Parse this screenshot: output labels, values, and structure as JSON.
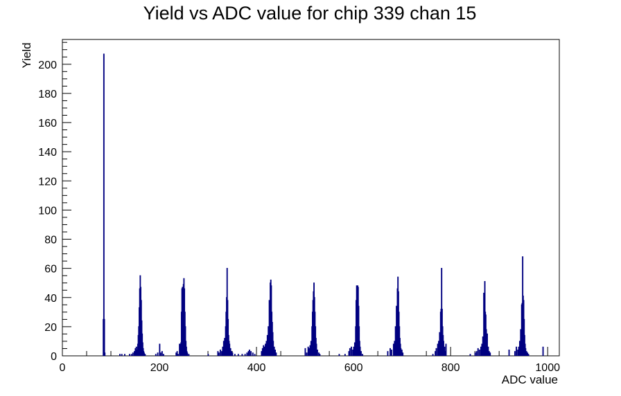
{
  "chart_data": {
    "type": "histogram",
    "title": "Yield vs ADC value for chip 339 chan 15",
    "xlabel": "ADC value",
    "ylabel": "Yield",
    "xlim": [
      0,
      1024
    ],
    "ylim": [
      0,
      217
    ],
    "x_ticks": [
      0,
      200,
      400,
      600,
      800,
      1000
    ],
    "y_ticks": [
      0,
      20,
      40,
      60,
      80,
      100,
      120,
      140,
      160,
      180,
      200
    ],
    "grid": false,
    "legend": "none",
    "color": "#000080",
    "series": [
      {
        "bins": [
          [
            84,
            25
          ],
          [
            85,
            207
          ],
          [
            86,
            25
          ],
          [
            87,
            2
          ],
          [
            118,
            1
          ],
          [
            122,
            1
          ],
          [
            128,
            1
          ],
          [
            138,
            1
          ],
          [
            142,
            1
          ],
          [
            145,
            2
          ],
          [
            148,
            3
          ],
          [
            150,
            5
          ],
          [
            152,
            6
          ],
          [
            154,
            4
          ],
          [
            155,
            8
          ],
          [
            156,
            14
          ],
          [
            157,
            20
          ],
          [
            158,
            33
          ],
          [
            159,
            46
          ],
          [
            160,
            55
          ],
          [
            161,
            47
          ],
          [
            162,
            38
          ],
          [
            163,
            24
          ],
          [
            164,
            15
          ],
          [
            165,
            9
          ],
          [
            166,
            5
          ],
          [
            167,
            3
          ],
          [
            168,
            2
          ],
          [
            170,
            1
          ],
          [
            192,
            1
          ],
          [
            196,
            2
          ],
          [
            200,
            8
          ],
          [
            202,
            2
          ],
          [
            205,
            3
          ],
          [
            208,
            1
          ],
          [
            234,
            2
          ],
          [
            236,
            3
          ],
          [
            238,
            1
          ],
          [
            241,
            8
          ],
          [
            243,
            8
          ],
          [
            244,
            9
          ],
          [
            245,
            30
          ],
          [
            246,
            46
          ],
          [
            247,
            47
          ],
          [
            248,
            47
          ],
          [
            249,
            49
          ],
          [
            250,
            53
          ],
          [
            251,
            46
          ],
          [
            252,
            30
          ],
          [
            253,
            20
          ],
          [
            254,
            10
          ],
          [
            255,
            6
          ],
          [
            256,
            3
          ],
          [
            257,
            2
          ],
          [
            260,
            1
          ],
          [
            300,
            1
          ],
          [
            320,
            3
          ],
          [
            322,
            2
          ],
          [
            325,
            4
          ],
          [
            328,
            3
          ],
          [
            330,
            6
          ],
          [
            332,
            10
          ],
          [
            334,
            12
          ],
          [
            336,
            20
          ],
          [
            337,
            30
          ],
          [
            338,
            40
          ],
          [
            339,
            60
          ],
          [
            340,
            38
          ],
          [
            341,
            25
          ],
          [
            342,
            14
          ],
          [
            343,
            10
          ],
          [
            344,
            8
          ],
          [
            346,
            5
          ],
          [
            348,
            3
          ],
          [
            350,
            2
          ],
          [
            355,
            1
          ],
          [
            362,
            1
          ],
          [
            370,
            1
          ],
          [
            376,
            1
          ],
          [
            380,
            2
          ],
          [
            383,
            3
          ],
          [
            385,
            4
          ],
          [
            388,
            3
          ],
          [
            392,
            2
          ],
          [
            396,
            1
          ],
          [
            410,
            3
          ],
          [
            412,
            5
          ],
          [
            414,
            7
          ],
          [
            416,
            6
          ],
          [
            418,
            8
          ],
          [
            420,
            10
          ],
          [
            422,
            14
          ],
          [
            424,
            20
          ],
          [
            426,
            38
          ],
          [
            428,
            50
          ],
          [
            429,
            52
          ],
          [
            430,
            48
          ],
          [
            431,
            30
          ],
          [
            432,
            23
          ],
          [
            433,
            16
          ],
          [
            434,
            10
          ],
          [
            436,
            6
          ],
          [
            438,
            4
          ],
          [
            440,
            2
          ],
          [
            500,
            5
          ],
          [
            503,
            2
          ],
          [
            506,
            6
          ],
          [
            508,
            5
          ],
          [
            510,
            7
          ],
          [
            512,
            10
          ],
          [
            514,
            20
          ],
          [
            515,
            30
          ],
          [
            516,
            38
          ],
          [
            517,
            44
          ],
          [
            518,
            50
          ],
          [
            519,
            40
          ],
          [
            520,
            30
          ],
          [
            521,
            20
          ],
          [
            522,
            12
          ],
          [
            523,
            8
          ],
          [
            525,
            4
          ],
          [
            528,
            2
          ],
          [
            530,
            1
          ],
          [
            570,
            1
          ],
          [
            582,
            1
          ],
          [
            590,
            3
          ],
          [
            592,
            5
          ],
          [
            595,
            6
          ],
          [
            598,
            4
          ],
          [
            600,
            6
          ],
          [
            602,
            9
          ],
          [
            604,
            20
          ],
          [
            605,
            38
          ],
          [
            606,
            48
          ],
          [
            607,
            48
          ],
          [
            608,
            48
          ],
          [
            609,
            47
          ],
          [
            610,
            34
          ],
          [
            611,
            20
          ],
          [
            612,
            10
          ],
          [
            613,
            6
          ],
          [
            615,
            3
          ],
          [
            618,
            1
          ],
          [
            670,
            3
          ],
          [
            675,
            5
          ],
          [
            678,
            4
          ],
          [
            682,
            8
          ],
          [
            684,
            10
          ],
          [
            686,
            20
          ],
          [
            688,
            34
          ],
          [
            690,
            46
          ],
          [
            691,
            54
          ],
          [
            692,
            44
          ],
          [
            693,
            30
          ],
          [
            694,
            20
          ],
          [
            695,
            12
          ],
          [
            696,
            8
          ],
          [
            697,
            5
          ],
          [
            699,
            4
          ],
          [
            701,
            2
          ],
          [
            763,
            1
          ],
          [
            768,
            3
          ],
          [
            770,
            5
          ],
          [
            773,
            8
          ],
          [
            775,
            10
          ],
          [
            777,
            16
          ],
          [
            779,
            30
          ],
          [
            780,
            32
          ],
          [
            781,
            60
          ],
          [
            782,
            32
          ],
          [
            783,
            20
          ],
          [
            784,
            14
          ],
          [
            785,
            10
          ],
          [
            787,
            6
          ],
          [
            789,
            3
          ],
          [
            790,
            8
          ],
          [
            840,
            1
          ],
          [
            850,
            2
          ],
          [
            853,
            3
          ],
          [
            856,
            5
          ],
          [
            859,
            4
          ],
          [
            862,
            6
          ],
          [
            864,
            8
          ],
          [
            866,
            13
          ],
          [
            868,
            43
          ],
          [
            869,
            40
          ],
          [
            870,
            51
          ],
          [
            871,
            30
          ],
          [
            872,
            28
          ],
          [
            873,
            18
          ],
          [
            874,
            10
          ],
          [
            875,
            15
          ],
          [
            877,
            6
          ],
          [
            879,
            3
          ],
          [
            881,
            2
          ],
          [
            920,
            4
          ],
          [
            932,
            3
          ],
          [
            935,
            6
          ],
          [
            938,
            4
          ],
          [
            940,
            6
          ],
          [
            942,
            10
          ],
          [
            944,
            18
          ],
          [
            946,
            35
          ],
          [
            947,
            36
          ],
          [
            948,
            68
          ],
          [
            949,
            41
          ],
          [
            950,
            38
          ],
          [
            951,
            25
          ],
          [
            952,
            14
          ],
          [
            953,
            8
          ],
          [
            954,
            5
          ],
          [
            956,
            3
          ],
          [
            958,
            2
          ],
          [
            960,
            1
          ],
          [
            990,
            6
          ]
        ]
      }
    ]
  }
}
